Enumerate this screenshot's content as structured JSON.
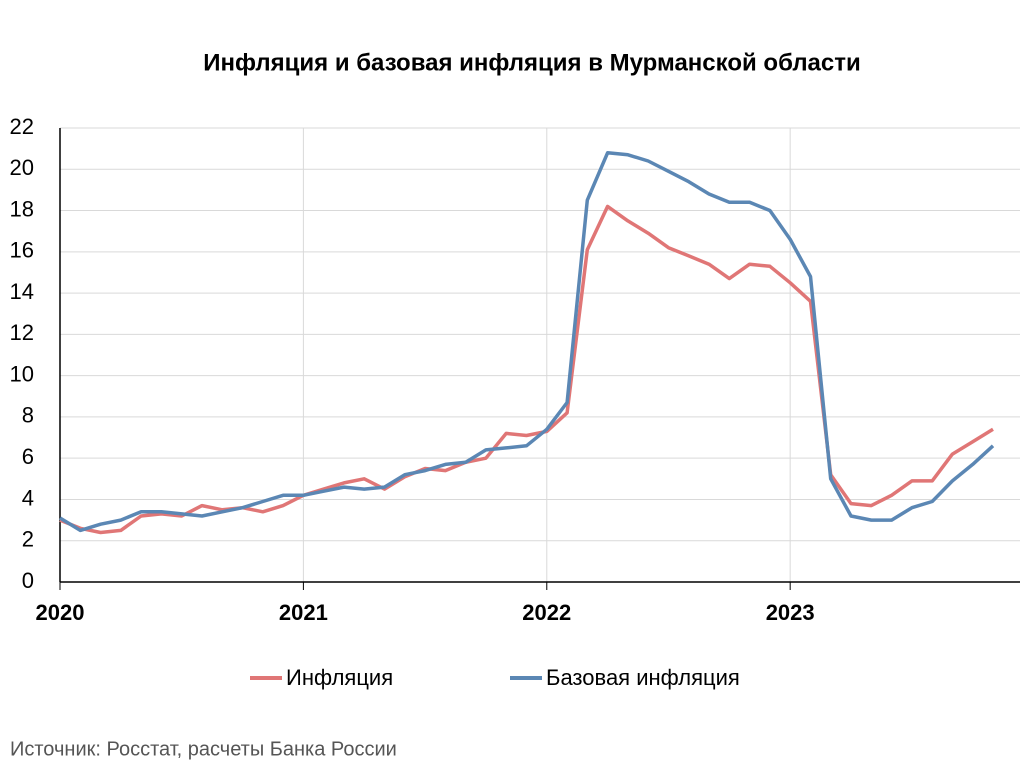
{
  "chart_data": {
    "type": "line",
    "title": "Инфляция и базовая инфляция в Мурманской области",
    "categories": [
      "2020",
      null,
      null,
      null,
      null,
      null,
      null,
      null,
      null,
      null,
      null,
      null,
      "2021",
      null,
      null,
      null,
      null,
      null,
      null,
      null,
      null,
      null,
      null,
      null,
      "2022",
      null,
      null,
      null,
      null,
      null,
      null,
      null,
      null,
      null,
      null,
      null,
      "2023",
      null,
      null,
      null,
      null,
      null,
      null,
      null,
      null,
      null,
      null
    ],
    "series": [
      {
        "name": "Инфляция",
        "color": "#e07676",
        "values": [
          3.0,
          2.6,
          2.4,
          2.5,
          3.2,
          3.3,
          3.2,
          3.7,
          3.5,
          3.6,
          3.4,
          3.7,
          4.2,
          4.5,
          4.8,
          5.0,
          4.5,
          5.1,
          5.5,
          5.4,
          5.8,
          6.0,
          7.2,
          7.1,
          7.3,
          8.2,
          16.1,
          18.2,
          17.5,
          16.9,
          16.2,
          15.8,
          15.4,
          14.7,
          15.4,
          15.3,
          14.5,
          13.6,
          5.2,
          3.8,
          3.7,
          4.2,
          4.9,
          4.9,
          6.2,
          6.8,
          7.4
        ]
      },
      {
        "name": "Базовая инфляция",
        "color": "#5b87b4",
        "values": [
          3.1,
          2.5,
          2.8,
          3.0,
          3.4,
          3.4,
          3.3,
          3.2,
          3.4,
          3.6,
          3.9,
          4.2,
          4.2,
          4.4,
          4.6,
          4.5,
          4.6,
          5.2,
          5.4,
          5.7,
          5.8,
          6.4,
          6.5,
          6.6,
          7.4,
          8.7,
          18.5,
          20.8,
          20.7,
          20.4,
          19.9,
          19.4,
          18.8,
          18.4,
          18.4,
          18.0,
          16.6,
          14.8,
          5.0,
          3.2,
          3.0,
          3.0,
          3.6,
          3.9,
          4.9,
          5.7,
          6.6
        ]
      }
    ],
    "ylim": [
      0,
      22
    ],
    "yticks": [
      0,
      2,
      4,
      6,
      8,
      10,
      12,
      14,
      16,
      18,
      20,
      22
    ],
    "grid": true,
    "legend": "bottom",
    "source": "Источник: Росстат, расчеты Банка России"
  }
}
